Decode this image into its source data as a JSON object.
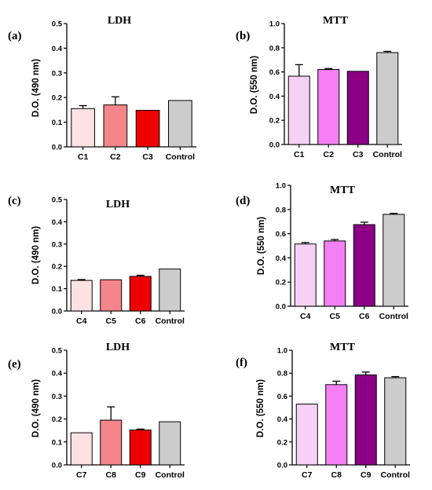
{
  "chart_data": [
    {
      "panel": "(a)",
      "type": "bar",
      "title": "LDH",
      "ylabel": "D.O. (490 nm)",
      "ylim": [
        0,
        0.5
      ],
      "yticks": [
        "0.0",
        "0.1",
        "0.2",
        "0.3",
        "0.4",
        "0.5"
      ],
      "ytick_values": [
        0,
        0.1,
        0.2,
        0.3,
        0.4,
        0.5
      ],
      "categories": [
        "C1",
        "C2",
        "C3",
        "Control"
      ],
      "values": [
        0.155,
        0.17,
        0.148,
        0.188
      ],
      "errors": [
        0.012,
        0.033,
        0,
        0
      ],
      "colors": [
        "#fde1e3",
        "#f4858a",
        "#ee0000",
        "#cccccc"
      ],
      "grid": false
    },
    {
      "panel": "(b)",
      "type": "bar",
      "title": "MTT",
      "ylabel": "D.O. (550 nm)",
      "ylim": [
        0,
        1.0
      ],
      "yticks": [
        "0.0",
        "0.2",
        "0.4",
        "0.6",
        "0.8",
        "1.0"
      ],
      "ytick_values": [
        0,
        0.2,
        0.4,
        0.6,
        0.8,
        1.0
      ],
      "categories": [
        "C1",
        "C2",
        "C3",
        "Control"
      ],
      "values": [
        0.565,
        0.62,
        0.605,
        0.76
      ],
      "errors": [
        0.095,
        0.008,
        0,
        0.01
      ],
      "colors": [
        "#f6d1f5",
        "#f47ff4",
        "#8b0084",
        "#cccccc"
      ],
      "grid": false
    },
    {
      "panel": "(c)",
      "type": "bar",
      "title": "LDH",
      "ylabel": "D.O. (490 nm)",
      "ylim": [
        0,
        0.5
      ],
      "yticks": [
        "0.0",
        "0.1",
        "0.2",
        "0.3",
        "0.4",
        "0.5"
      ],
      "ytick_values": [
        0,
        0.1,
        0.2,
        0.3,
        0.4,
        0.5
      ],
      "categories": [
        "C4",
        "C5",
        "C6",
        "Control"
      ],
      "values": [
        0.137,
        0.14,
        0.155,
        0.188
      ],
      "errors": [
        0.004,
        0,
        0.005,
        0
      ],
      "colors": [
        "#fde1e3",
        "#f4858a",
        "#ee0000",
        "#cccccc"
      ],
      "grid": false
    },
    {
      "panel": "(d)",
      "type": "bar",
      "title": "MTT",
      "ylabel": "D.O. (550 nm)",
      "ylim": [
        0,
        1.0
      ],
      "yticks": [
        "0.0",
        "0.2",
        "0.4",
        "0.6",
        "0.8",
        "1.0"
      ],
      "ytick_values": [
        0,
        0.2,
        0.4,
        0.6,
        0.8,
        1.0
      ],
      "categories": [
        "C4",
        "C5",
        "C6",
        "Control"
      ],
      "values": [
        0.515,
        0.54,
        0.675,
        0.76
      ],
      "errors": [
        0.012,
        0.012,
        0.02,
        0.008
      ],
      "colors": [
        "#f6d1f5",
        "#f47ff4",
        "#8b0084",
        "#cccccc"
      ],
      "grid": false
    },
    {
      "panel": "(e)",
      "type": "bar",
      "title": "LDH",
      "ylabel": "D.O. (490 nm)",
      "ylim": [
        0,
        0.5
      ],
      "yticks": [
        "0.0",
        "0.1",
        "0.2",
        "0.3",
        "0.4",
        "0.5"
      ],
      "ytick_values": [
        0,
        0.1,
        0.2,
        0.3,
        0.4,
        0.5
      ],
      "categories": [
        "C7",
        "C8",
        "C9",
        "Control"
      ],
      "values": [
        0.14,
        0.195,
        0.152,
        0.188
      ],
      "errors": [
        0,
        0.058,
        0.004,
        0
      ],
      "colors": [
        "#fde1e3",
        "#f4858a",
        "#ee0000",
        "#cccccc"
      ],
      "grid": false
    },
    {
      "panel": "(f)",
      "type": "bar",
      "title": "MTT",
      "ylabel": "D.O. (550 nm)",
      "ylim": [
        0,
        1.0
      ],
      "yticks": [
        "0.0",
        "0.2",
        "0.4",
        "0.6",
        "0.8",
        "1.0"
      ],
      "ytick_values": [
        0,
        0.2,
        0.4,
        0.6,
        0.8,
        1.0
      ],
      "categories": [
        "C7",
        "C8",
        "C9",
        "Control"
      ],
      "values": [
        0.53,
        0.7,
        0.785,
        0.76
      ],
      "errors": [
        0,
        0.03,
        0.025,
        0.01
      ],
      "colors": [
        "#f6d1f5",
        "#f47ff4",
        "#8b0084",
        "#cccccc"
      ],
      "grid": false
    }
  ]
}
